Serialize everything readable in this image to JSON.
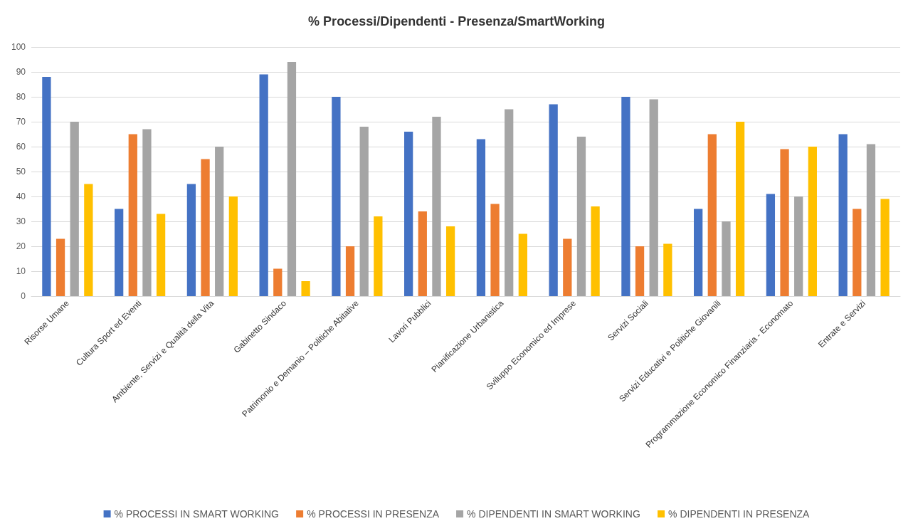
{
  "chart_data": {
    "type": "bar",
    "title": "% Processi/Dipendenti - Presenza/SmartWorking",
    "categories": [
      "Risorse Umane",
      "Cultura Sport ed Eventi",
      "Ambiente, Servizi e Qualità della Vita",
      "Gabinetto Sindaco",
      "Patrimonio e Demanio – Politiche Abitative",
      "Lavori Pubblici",
      "Pianificazione Urbanistica",
      "Sviluppo Economico ed Imprese",
      "Servizi Sociali",
      "Servizi Educativi e Politiche Giovanili",
      "Programmazione Economico Finanziaria - Economato",
      "Entrate e Servizi"
    ],
    "series": [
      {
        "name": "% PROCESSI IN SMART WORKING",
        "color": "#4472c4",
        "values": [
          88,
          35,
          45,
          89,
          80,
          66,
          63,
          77,
          80,
          35,
          41,
          65
        ]
      },
      {
        "name": "% PROCESSI IN PRESENZA",
        "color": "#ed7d31",
        "values": [
          23,
          65,
          55,
          11,
          20,
          34,
          37,
          23,
          20,
          65,
          59,
          35
        ]
      },
      {
        "name": "% DIPENDENTI IN SMART WORKING",
        "color": "#a5a5a5",
        "values": [
          70,
          67,
          60,
          94,
          68,
          72,
          75,
          64,
          79,
          30,
          40,
          61
        ]
      },
      {
        "name": "% DIPENDENTI IN PRESENZA",
        "color": "#ffc000",
        "values": [
          45,
          33,
          40,
          6,
          32,
          28,
          25,
          36,
          21,
          70,
          60,
          39
        ]
      }
    ],
    "ylim": [
      0,
      100
    ],
    "yticks": [
      0,
      10,
      20,
      30,
      40,
      50,
      60,
      70,
      80,
      90,
      100
    ],
    "grid": "y",
    "legend": "bottom"
  }
}
